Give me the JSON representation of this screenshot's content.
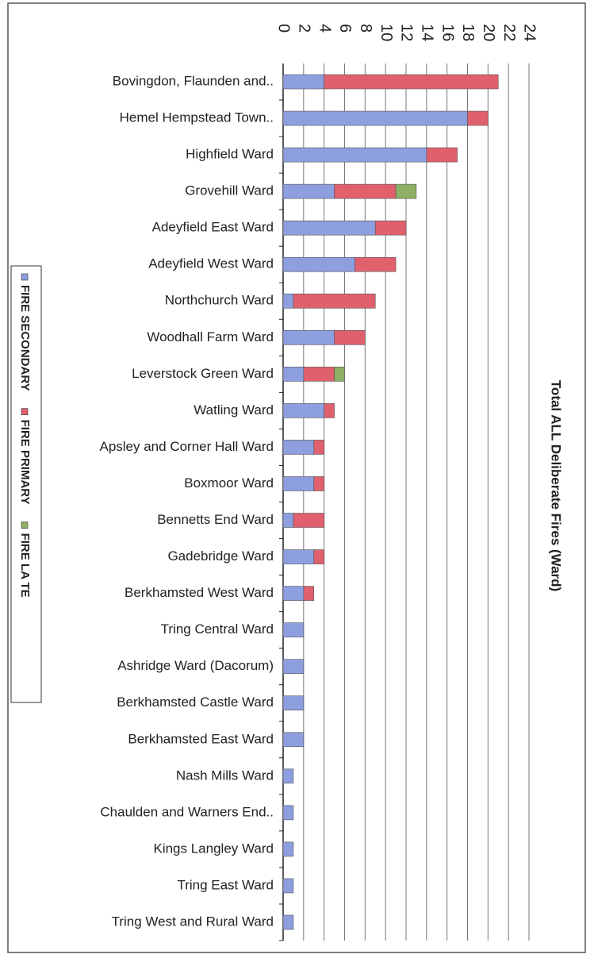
{
  "chart_data": {
    "type": "bar",
    "orientation": "horizontal",
    "stacked": true,
    "title": "Total ALL Deliberate Fires (Ward)",
    "categories": [
      "Bovingdon, Flaunden and..",
      "Hemel Hempstead Town..",
      "Highfield Ward",
      "Grovehill Ward",
      "Adeyfield East Ward",
      "Adeyfield West Ward",
      "Northchurch Ward",
      "Woodhall Farm Ward",
      "Leverstock Green Ward",
      "Watling Ward",
      "Apsley and Corner Hall Ward",
      "Boxmoor Ward",
      "Bennetts End Ward",
      "Gadebridge Ward",
      "Berkhamsted West Ward",
      "Tring Central Ward",
      "Ashridge Ward (Dacorum)",
      "Berkhamsted Castle Ward",
      "Berkhamsted East Ward",
      "Nash Mills Ward",
      "Chaulden and Warners End..",
      "Kings Langley Ward",
      "Tring East Ward",
      "Tring West and Rural Ward"
    ],
    "series": [
      {
        "name": "FIRE SECONDARY",
        "color": "#8e9fe0",
        "values": [
          4,
          18,
          14,
          5,
          9,
          7,
          1,
          5,
          2,
          4,
          3,
          3,
          1,
          3,
          2,
          2,
          2,
          2,
          2,
          1,
          1,
          1,
          1,
          1
        ]
      },
      {
        "name": "FIRE PRIMARY",
        "color": "#e0606e",
        "values": [
          17,
          2,
          3,
          6,
          3,
          4,
          8,
          3,
          3,
          1,
          1,
          1,
          3,
          1,
          1,
          0,
          0,
          0,
          0,
          0,
          0,
          0,
          0,
          0
        ]
      },
      {
        "name": "FIRE LA TE",
        "color": "#8db064",
        "values": [
          0,
          0,
          0,
          2,
          0,
          0,
          0,
          0,
          1,
          0,
          0,
          0,
          0,
          0,
          0,
          0,
          0,
          0,
          0,
          0,
          0,
          0,
          0,
          0
        ]
      }
    ],
    "xlim": [
      0,
      24
    ],
    "xticks": [
      0,
      2,
      4,
      6,
      8,
      10,
      12,
      14,
      16,
      18,
      20,
      22,
      24
    ],
    "grid": true,
    "legend": "left"
  }
}
